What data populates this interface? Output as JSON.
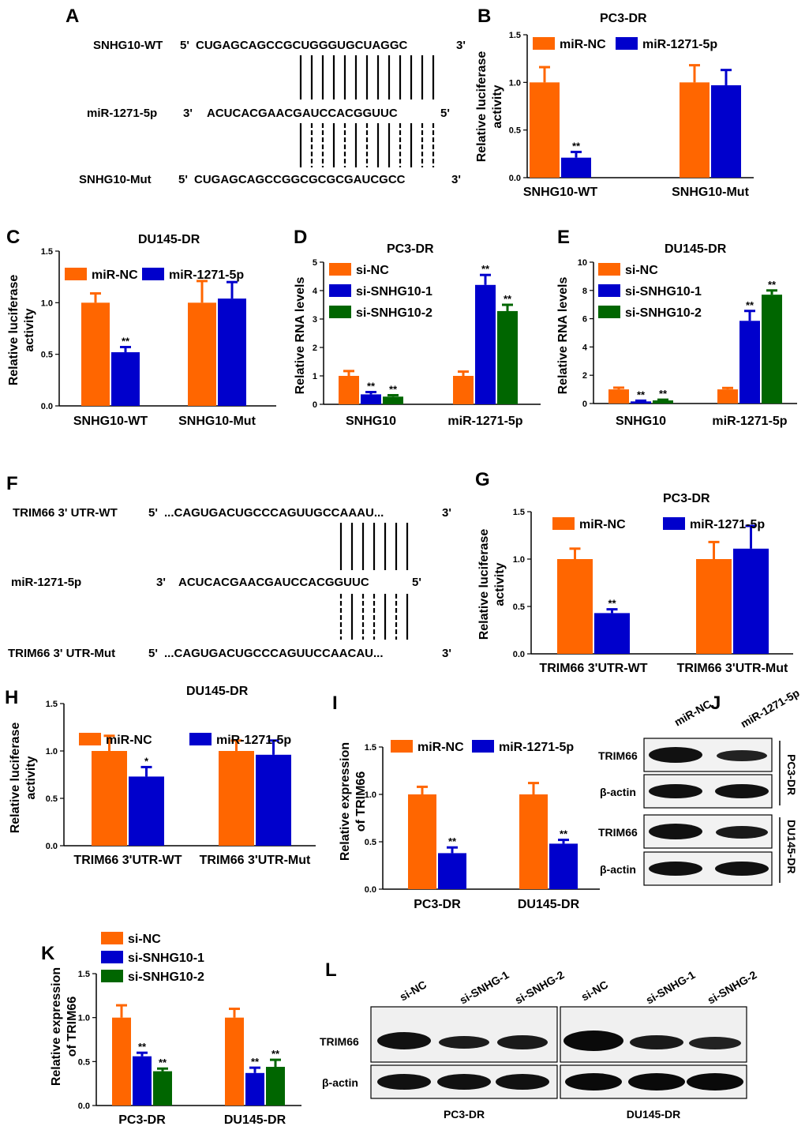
{
  "colors": {
    "orange": "#FF6600",
    "blue": "#0000CC",
    "green": "#006600"
  },
  "sequence_panels": [
    {
      "label": "A",
      "rows": [
        {
          "name": "SNHG10-WT",
          "prefix": "5'",
          "seq": "CUGAGCAGCCGCUGGGUGCUAGGC",
          "suffix": "3'"
        },
        {
          "name": "miR-1271-5p",
          "prefix": "3'",
          "seq": "ACUCACGAACGAUCCACGGUUC",
          "suffix": "5'"
        },
        {
          "name": "SNHG10-Mut",
          "prefix": "5'",
          "seq": "CUGAGCAGCCGGCGCGCGAUCGCC",
          "suffix": "3'"
        }
      ]
    },
    {
      "label": "F",
      "rows": [
        {
          "name": "TRIM66 3' UTR-WT",
          "prefix": "5'",
          "seq": "...CAGUGACUGCCCAGUUGCCAAAU...",
          "suffix": "3'"
        },
        {
          "name": "miR-1271-5p",
          "prefix": "3'",
          "seq": "ACUCACGAACGAUCCACGGUUC",
          "suffix": "5'"
        },
        {
          "name": "TRIM66 3' UTR-Mut",
          "prefix": "5'",
          "seq": "...CAGUGACUGCCCAGUUCCAACAU...",
          "suffix": "3'"
        }
      ]
    }
  ],
  "chart_data": [
    {
      "label": "B",
      "type": "bar",
      "title": "PC3-DR",
      "ylabel": "Relative luciferase activity",
      "ylim": [
        0,
        1.5
      ],
      "yticks": [
        "0.0",
        "0.5",
        "1.0",
        "1.5"
      ],
      "categories": [
        "SNHG10-WT",
        "SNHG10-Mut"
      ],
      "series": [
        {
          "name": "miR-NC",
          "color": "orange",
          "values": [
            1.0,
            1.0
          ],
          "errors": [
            0.16,
            0.18
          ],
          "sig": [
            "",
            ""
          ]
        },
        {
          "name": "miR-1271-5p",
          "color": "blue",
          "values": [
            0.21,
            0.97
          ],
          "errors": [
            0.06,
            0.16
          ],
          "sig": [
            "**",
            ""
          ]
        }
      ]
    },
    {
      "label": "C",
      "type": "bar",
      "title": "DU145-DR",
      "ylabel": "Relative luciferase activity",
      "ylim": [
        0,
        1.5
      ],
      "yticks": [
        "0.0",
        "0.5",
        "1.0",
        "1.5"
      ],
      "categories": [
        "SNHG10-WT",
        "SNHG10-Mut"
      ],
      "series": [
        {
          "name": "miR-NC",
          "color": "orange",
          "values": [
            1.0,
            1.0
          ],
          "errors": [
            0.09,
            0.21
          ],
          "sig": [
            "",
            ""
          ]
        },
        {
          "name": "miR-1271-5p",
          "color": "blue",
          "values": [
            0.52,
            1.04
          ],
          "errors": [
            0.05,
            0.16
          ],
          "sig": [
            "**",
            ""
          ]
        }
      ]
    },
    {
      "label": "D",
      "type": "bar",
      "title": "PC3-DR",
      "ylabel": "Relative RNA levels",
      "ylim": [
        0,
        5
      ],
      "yticks": [
        "0",
        "1",
        "2",
        "3",
        "4",
        "5"
      ],
      "categories": [
        "SNHG10",
        "miR-1271-5p"
      ],
      "series": [
        {
          "name": "si-NC",
          "color": "orange",
          "values": [
            1.0,
            1.0
          ],
          "errors": [
            0.17,
            0.15
          ],
          "sig": [
            "",
            ""
          ]
        },
        {
          "name": "si-SNHG10-1",
          "color": "blue",
          "values": [
            0.35,
            4.2
          ],
          "errors": [
            0.08,
            0.35
          ],
          "sig": [
            "**",
            "**"
          ]
        },
        {
          "name": "si-SNHG10-2",
          "color": "green",
          "values": [
            0.27,
            3.28
          ],
          "errors": [
            0.05,
            0.22
          ],
          "sig": [
            "**",
            "**"
          ]
        }
      ]
    },
    {
      "label": "E",
      "type": "bar",
      "title": "DU145-DR",
      "ylabel": "Relative RNA levels",
      "ylim": [
        0,
        10
      ],
      "yticks": [
        "0",
        "2",
        "4",
        "6",
        "8",
        "10"
      ],
      "categories": [
        "SNHG10",
        "miR-1271-5p"
      ],
      "series": [
        {
          "name": "si-NC",
          "color": "orange",
          "values": [
            1.0,
            1.0
          ],
          "errors": [
            0.12,
            0.1
          ],
          "sig": [
            "",
            ""
          ]
        },
        {
          "name": "si-SNHG10-1",
          "color": "blue",
          "values": [
            0.15,
            5.85
          ],
          "errors": [
            0.05,
            0.7
          ],
          "sig": [
            "**",
            "**"
          ]
        },
        {
          "name": "si-SNHG10-2",
          "color": "green",
          "values": [
            0.22,
            7.7
          ],
          "errors": [
            0.05,
            0.3
          ],
          "sig": [
            "**",
            "**"
          ]
        }
      ]
    },
    {
      "label": "G",
      "type": "bar",
      "title": "PC3-DR",
      "ylabel": "Relative luciferase activity",
      "ylim": [
        0,
        1.5
      ],
      "yticks": [
        "0.0",
        "0.5",
        "1.0",
        "1.5"
      ],
      "categories": [
        "TRIM66 3'UTR-WT",
        "TRIM66 3'UTR-Mut"
      ],
      "series": [
        {
          "name": "miR-NC",
          "color": "orange",
          "values": [
            1.0,
            1.0
          ],
          "errors": [
            0.11,
            0.18
          ],
          "sig": [
            "",
            ""
          ]
        },
        {
          "name": "miR-1271-5p",
          "color": "blue",
          "values": [
            0.43,
            1.11
          ],
          "errors": [
            0.04,
            0.24
          ],
          "sig": [
            "**",
            ""
          ]
        }
      ]
    },
    {
      "label": "H",
      "type": "bar",
      "title": "DU145-DR",
      "ylabel": "Relative luciferase activity",
      "ylim": [
        0,
        1.5
      ],
      "yticks": [
        "0.0",
        "0.5",
        "1.0",
        "1.5"
      ],
      "categories": [
        "TRIM66 3'UTR-WT",
        "TRIM66 3'UTR-Mut"
      ],
      "series": [
        {
          "name": "miR-NC",
          "color": "orange",
          "values": [
            1.0,
            1.0
          ],
          "errors": [
            0.16,
            0.11
          ],
          "sig": [
            "",
            ""
          ]
        },
        {
          "name": "miR-1271-5p",
          "color": "blue",
          "values": [
            0.73,
            0.96
          ],
          "errors": [
            0.1,
            0.15
          ],
          "sig": [
            "*",
            ""
          ]
        }
      ]
    },
    {
      "label": "I",
      "type": "bar",
      "title": "",
      "ylabel": "Relative expression of TRIM66",
      "ylim": [
        0,
        1.5
      ],
      "yticks": [
        "0.0",
        "0.5",
        "1.0",
        "1.5"
      ],
      "categories": [
        "PC3-DR",
        "DU145-DR"
      ],
      "series": [
        {
          "name": "miR-NC",
          "color": "orange",
          "values": [
            1.0,
            1.0
          ],
          "errors": [
            0.08,
            0.12
          ],
          "sig": [
            "",
            ""
          ]
        },
        {
          "name": "miR-1271-5p",
          "color": "blue",
          "values": [
            0.38,
            0.48
          ],
          "errors": [
            0.06,
            0.04
          ],
          "sig": [
            "**",
            "**"
          ]
        }
      ]
    },
    {
      "label": "K",
      "type": "bar",
      "title": "",
      "ylabel": "Relative expression of TRIM66",
      "ylim": [
        0,
        1.5
      ],
      "yticks": [
        "0.0",
        "0.5",
        "1.0",
        "1.5"
      ],
      "categories": [
        "PC3-DR",
        "DU145-DR"
      ],
      "series": [
        {
          "name": "si-NC",
          "color": "orange",
          "values": [
            1.0,
            1.0
          ],
          "errors": [
            0.14,
            0.1
          ],
          "sig": [
            "",
            ""
          ]
        },
        {
          "name": "si-SNHG10-1",
          "color": "blue",
          "values": [
            0.56,
            0.37
          ],
          "errors": [
            0.04,
            0.06
          ],
          "sig": [
            "**",
            "**"
          ]
        },
        {
          "name": "si-SNHG10-2",
          "color": "green",
          "values": [
            0.39,
            0.44
          ],
          "errors": [
            0.03,
            0.08
          ],
          "sig": [
            "**",
            "**"
          ]
        }
      ]
    }
  ],
  "blots": {
    "J": {
      "label": "J",
      "lanes": [
        "miR-NC",
        "miR-1271-5p"
      ],
      "proteins": [
        "TRIM66",
        "β-actin"
      ],
      "groups": [
        "PC3-DR",
        "DU145-DR"
      ]
    },
    "L": {
      "label": "L",
      "lanes": [
        "si-NC",
        "si-SNHG-1",
        "si-SNHG-2",
        "si-NC",
        "si-SNHG-1",
        "si-SNHG-2"
      ],
      "proteins": [
        "TRIM66",
        "β-actin"
      ],
      "groups": [
        "PC3-DR",
        "DU145-DR"
      ]
    }
  }
}
